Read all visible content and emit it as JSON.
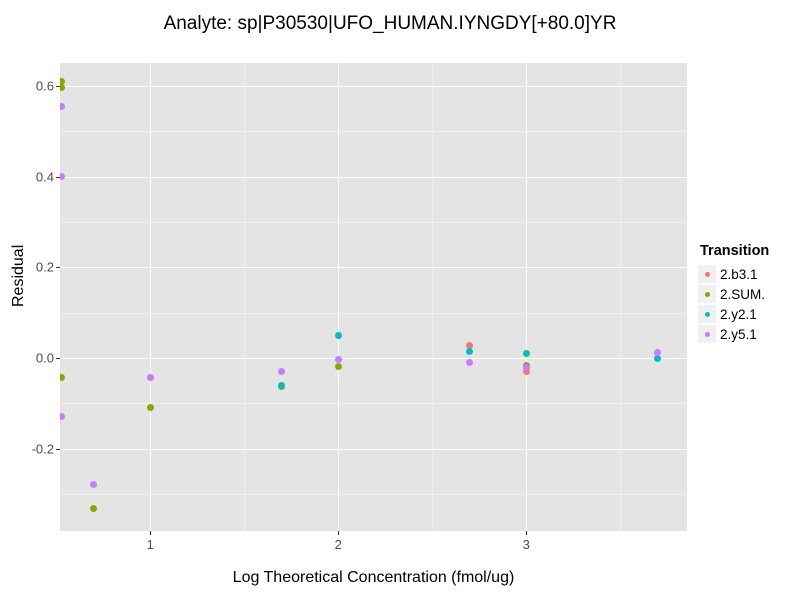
{
  "title": "Analyte: sp|P30530|UFO_HUMAN.IYNGDY[+80.0]YR",
  "colors": {
    "panel_bg": "#E4E4E4",
    "grid_major": "#FFFFFF",
    "grid_minor": "#EFEFEF",
    "tick_text": "#4D4D4D",
    "tick_mark": "#333333",
    "legend_key_bg": "#F0F0F0"
  },
  "chart_data": {
    "type": "scatter",
    "title": "Analyte: sp|P30530|UFO_HUMAN.IYNGDY[+80.0]YR",
    "xlabel": "Log Theoretical Concentration (fmol/ug)",
    "ylabel": "Residual",
    "legend_title": "Transition",
    "legend_position": "right",
    "grid": true,
    "xlim": [
      0.52,
      3.855
    ],
    "ylim": [
      -0.382,
      0.651
    ],
    "xticks": [
      {
        "v": 1,
        "label": "1"
      },
      {
        "v": 2,
        "label": "2"
      },
      {
        "v": 3,
        "label": "3"
      }
    ],
    "xticks_minor": [
      1.5,
      2.5,
      3.5
    ],
    "yticks": [
      {
        "v": 0.6,
        "label": "0.6"
      },
      {
        "v": 0.4,
        "label": "0.4"
      },
      {
        "v": 0.2,
        "label": "0.2"
      },
      {
        "v": 0.0,
        "label": "0.0"
      },
      {
        "v": -0.2,
        "label": "-0.2"
      }
    ],
    "yticks_minor": [
      0.5,
      0.3,
      0.1,
      -0.1,
      -0.3
    ],
    "series": [
      {
        "name": "2.b3.1",
        "color": "#F8766D",
        "points": [
          [
            2.7,
            0.027
          ],
          [
            3.0,
            -0.029
          ]
        ]
      },
      {
        "name": "2.SUM.",
        "color": "#7CAE00",
        "points": [
          [
            0.53,
            0.61
          ],
          [
            0.53,
            0.596
          ],
          [
            0.53,
            -0.044
          ],
          [
            0.7,
            -0.333
          ],
          [
            1.0,
            -0.109
          ],
          [
            1.7,
            -0.064
          ],
          [
            2.0,
            -0.018
          ],
          [
            3.0,
            -0.016
          ]
        ]
      },
      {
        "name": "2.y2.1",
        "color": "#00BFC4",
        "points": [
          [
            1.7,
            -0.061
          ],
          [
            2.0,
            0.049
          ],
          [
            2.7,
            0.014
          ],
          [
            3.0,
            0.009
          ],
          [
            3.7,
            -0.001
          ]
        ]
      },
      {
        "name": "2.y5.1",
        "color": "#C77CFF",
        "points": [
          [
            0.53,
            0.555
          ],
          [
            0.53,
            0.4
          ],
          [
            0.53,
            -0.129
          ],
          [
            0.7,
            -0.28
          ],
          [
            1.0,
            -0.044
          ],
          [
            1.7,
            -0.031
          ],
          [
            2.0,
            -0.004
          ],
          [
            2.7,
            -0.009
          ],
          [
            3.0,
            -0.022
          ],
          [
            3.7,
            0.011
          ]
        ]
      }
    ]
  }
}
